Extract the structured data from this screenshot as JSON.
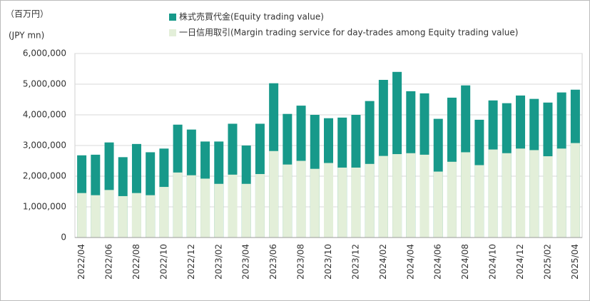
{
  "chart_data": {
    "type": "bar",
    "overlay": true,
    "unit_labels": [
      "（百万円）",
      "(JPY mn)"
    ],
    "categories": [
      "2022/04",
      null,
      "2022/06",
      null,
      "2022/08",
      null,
      "2022/10",
      null,
      "2022/12",
      null,
      "2023/02",
      null,
      "2023/04",
      null,
      "2023/06",
      null,
      "2023/08",
      null,
      "2023/10",
      null,
      "2023/12",
      null,
      "2024/02",
      null,
      "2024/04",
      null,
      "2024/06",
      null,
      "2024/08",
      null,
      "2024/10",
      null,
      "2024/12",
      null,
      "2025/02",
      null,
      "2025/04"
    ],
    "series": [
      {
        "name": "株式売買代金(Equity trading value)",
        "color": "#17998a",
        "values": [
          2680000,
          2700000,
          3100000,
          2620000,
          3050000,
          2780000,
          2900000,
          3680000,
          3520000,
          3130000,
          3130000,
          3710000,
          3000000,
          3710000,
          5030000,
          4030000,
          4300000,
          4000000,
          3890000,
          3910000,
          4000000,
          4450000,
          5140000,
          5400000,
          4770000,
          4700000,
          3870000,
          4560000,
          4960000,
          3840000,
          4470000,
          4380000,
          4630000,
          4520000,
          4400000,
          4730000,
          4820000
        ]
      },
      {
        "name": "一日信用取引(Margin trading service for day-trades among Equity trading value)",
        "color": "#e3efd9",
        "values": [
          1450000,
          1380000,
          1550000,
          1350000,
          1450000,
          1380000,
          1650000,
          2120000,
          2030000,
          1920000,
          1750000,
          2050000,
          1750000,
          2070000,
          2820000,
          2380000,
          2500000,
          2240000,
          2430000,
          2280000,
          2280000,
          2400000,
          2660000,
          2720000,
          2750000,
          2700000,
          2150000,
          2470000,
          2780000,
          2360000,
          2870000,
          2750000,
          2900000,
          2850000,
          2650000,
          2900000,
          3080000
        ]
      }
    ],
    "ylim": [
      0,
      6000000
    ],
    "yticks": [
      0,
      {
        "value": 1000000,
        "label": "1,000,000"
      },
      {
        "value": 2000000,
        "label": "2,000,000"
      },
      {
        "value": 3000000,
        "label": "3,000,000"
      },
      {
        "value": 4000000,
        "label": "4,000,000"
      },
      {
        "value": 5000000,
        "label": "5,000,000"
      },
      {
        "value": 6000000,
        "label": "6,000,000"
      }
    ],
    "grid": true
  }
}
